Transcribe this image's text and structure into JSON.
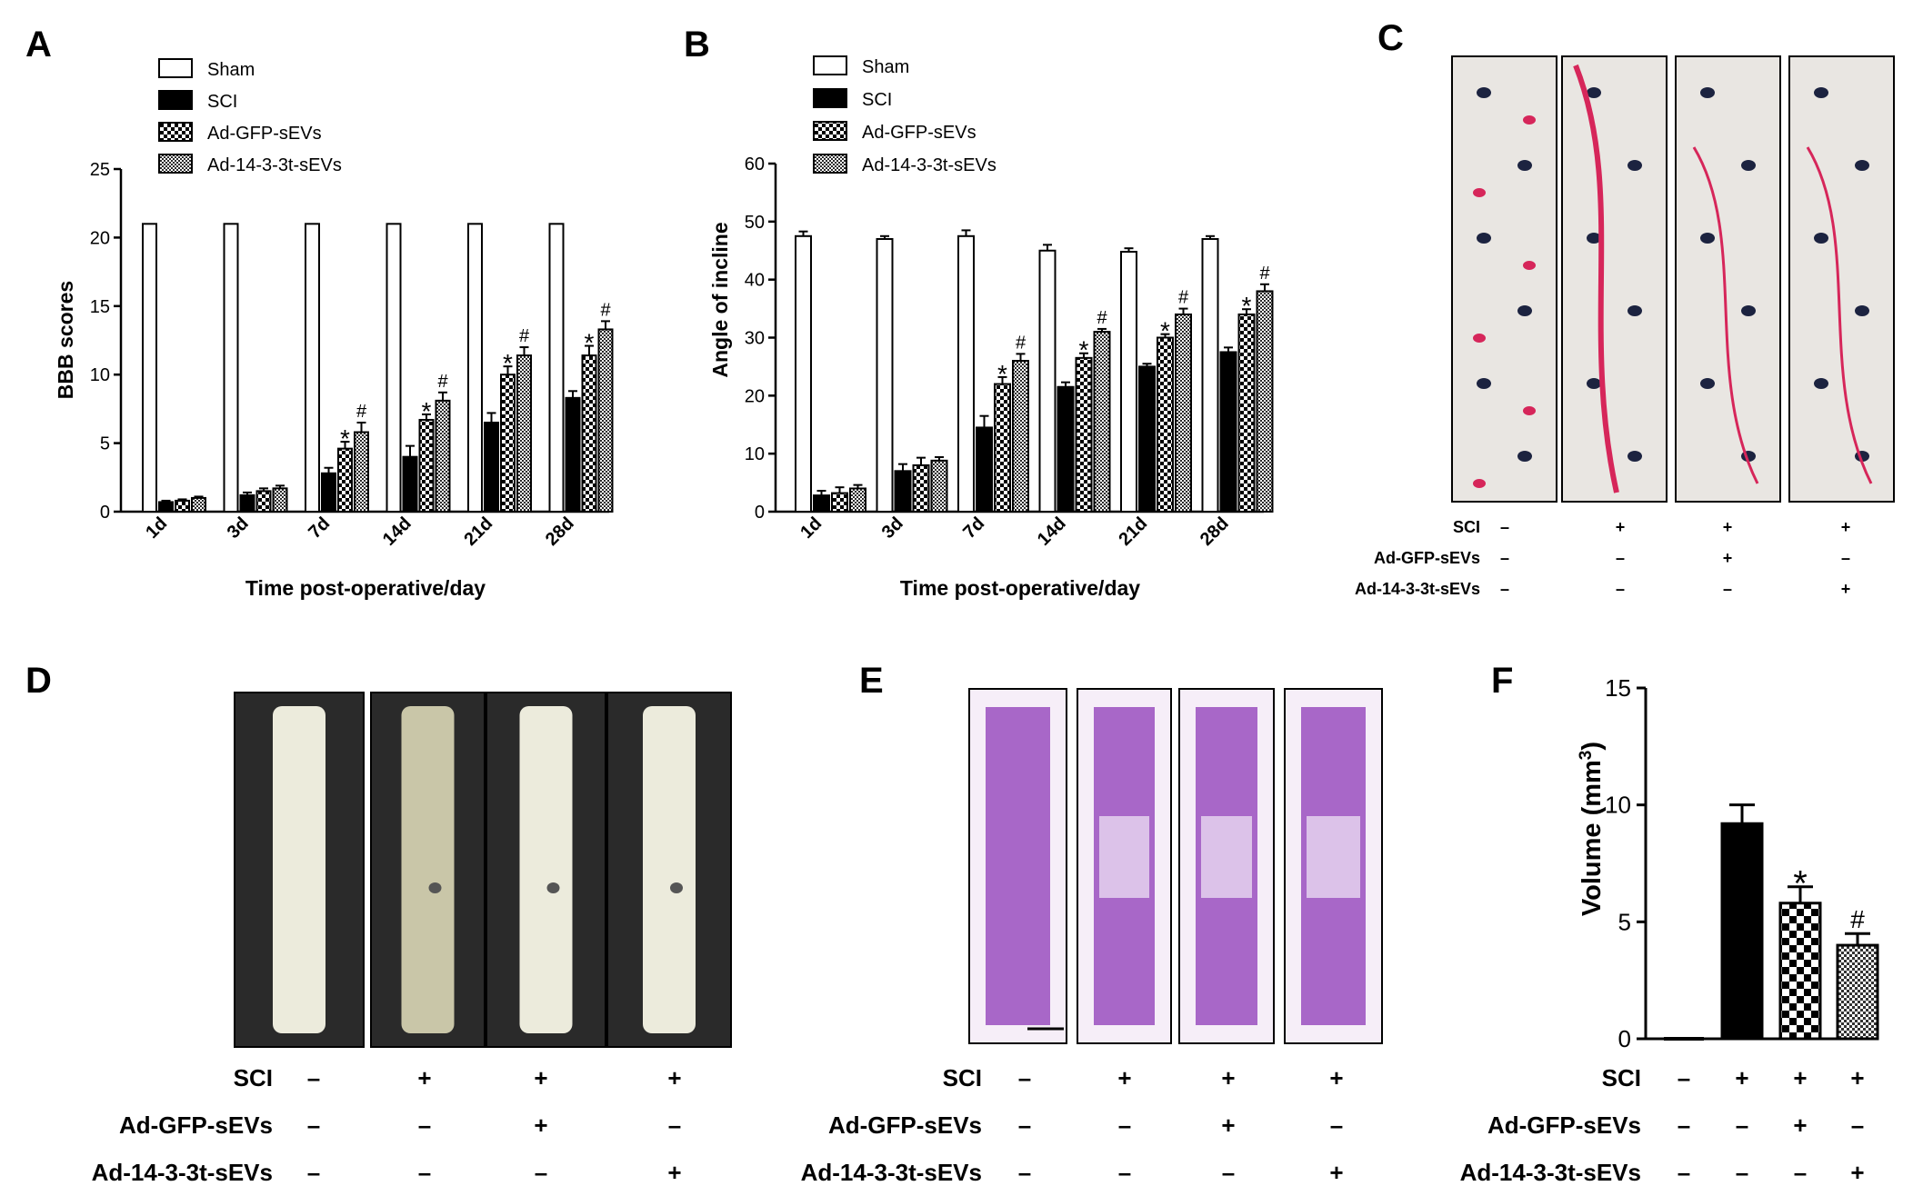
{
  "panels": {
    "A": "A",
    "B": "B",
    "C": "C",
    "D": "D",
    "E": "E",
    "F": "F"
  },
  "legend": [
    "Sham",
    "SCI",
    "Ad-GFP-sEVs",
    "Ad-14-3-3t-sEVs"
  ],
  "treatment_table": {
    "rows": [
      "SCI",
      "Ad-GFP-sEVs",
      "Ad-14-3-3t-sEVs"
    ],
    "signs": [
      [
        "–",
        "+",
        "+",
        "+"
      ],
      [
        "–",
        "–",
        "+",
        "–"
      ],
      [
        "–",
        "–",
        "–",
        "+"
      ]
    ]
  },
  "colors": {
    "footprint_photo_bg": "#e9e6e2",
    "forepaw_ink": "#1c2340",
    "hindpaw_ink": "#d6265a",
    "cord_photo_bg": "#2a2a2a",
    "cord_tissue": "#ecebdc",
    "he_stain": "#9a4fbf",
    "he_bg": "#f6eef8"
  },
  "chart_data": [
    {
      "panel": "A",
      "type": "bar",
      "categories": [
        "1d",
        "3d",
        "7d",
        "14d",
        "21d",
        "28d"
      ],
      "xlabel": "Time post-operative/day",
      "ylabel": "BBB scores",
      "ylim": [
        0,
        25
      ],
      "yticks": [
        "0",
        "5",
        "10",
        "15",
        "20",
        "25"
      ],
      "series": [
        {
          "name": "Sham",
          "pattern": "open",
          "values": [
            21,
            21,
            21,
            21,
            21,
            21
          ],
          "errors": [
            0,
            0,
            0,
            0,
            0,
            0
          ]
        },
        {
          "name": "SCI",
          "pattern": "solid",
          "values": [
            0.7,
            1.2,
            2.8,
            4.0,
            6.5,
            8.3
          ],
          "errors": [
            0.1,
            0.2,
            0.4,
            0.8,
            0.7,
            0.5
          ]
        },
        {
          "name": "Ad-GFP-sEVs",
          "pattern": "checker",
          "values": [
            0.8,
            1.5,
            4.6,
            6.7,
            10.0,
            11.4
          ],
          "errors": [
            0.1,
            0.2,
            0.5,
            0.4,
            0.6,
            0.7
          ]
        },
        {
          "name": "Ad-14-3-3t-sEVs",
          "pattern": "fine",
          "values": [
            1.0,
            1.7,
            5.8,
            8.1,
            11.4,
            13.3
          ],
          "errors": [
            0.1,
            0.2,
            0.7,
            0.6,
            0.6,
            0.6
          ]
        }
      ],
      "annotations": [
        {
          "category": "7d",
          "series": "Ad-GFP-sEVs",
          "text": "*"
        },
        {
          "category": "7d",
          "series": "Ad-14-3-3t-sEVs",
          "text": "#"
        },
        {
          "category": "14d",
          "series": "Ad-GFP-sEVs",
          "text": "*"
        },
        {
          "category": "14d",
          "series": "Ad-14-3-3t-sEVs",
          "text": "#"
        },
        {
          "category": "21d",
          "series": "Ad-GFP-sEVs",
          "text": "*"
        },
        {
          "category": "21d",
          "series": "Ad-14-3-3t-sEVs",
          "text": "#"
        },
        {
          "category": "28d",
          "series": "Ad-GFP-sEVs",
          "text": "*"
        },
        {
          "category": "28d",
          "series": "Ad-14-3-3t-sEVs",
          "text": "#"
        }
      ]
    },
    {
      "panel": "B",
      "type": "bar",
      "categories": [
        "1d",
        "3d",
        "7d",
        "14d",
        "21d",
        "28d"
      ],
      "xlabel": "Time post-operative/day",
      "ylabel": "Angle of incline",
      "ylim": [
        0,
        60
      ],
      "yticks": [
        "0",
        "10",
        "20",
        "30",
        "40",
        "50",
        "60"
      ],
      "series": [
        {
          "name": "Sham",
          "pattern": "open",
          "values": [
            47.5,
            47,
            47.5,
            45,
            44.8,
            47
          ],
          "errors": [
            0.8,
            0.5,
            1.0,
            1.0,
            0.6,
            0.5
          ]
        },
        {
          "name": "SCI",
          "pattern": "solid",
          "values": [
            2.8,
            7.0,
            14.5,
            21.5,
            25.0,
            27.5
          ],
          "errors": [
            0.8,
            1.2,
            2.0,
            0.8,
            0.5,
            0.8
          ]
        },
        {
          "name": "Ad-GFP-sEVs",
          "pattern": "checker",
          "values": [
            3.2,
            8.0,
            22.0,
            26.5,
            30.0,
            34.0
          ],
          "errors": [
            1.0,
            1.3,
            1.2,
            0.8,
            0.6,
            0.9
          ]
        },
        {
          "name": "Ad-14-3-3t-sEVs",
          "pattern": "fine",
          "values": [
            4.0,
            8.8,
            26.0,
            31.0,
            34.0,
            38.0
          ],
          "errors": [
            0.6,
            0.6,
            1.2,
            0.5,
            1.0,
            1.2
          ]
        }
      ],
      "annotations": [
        {
          "category": "7d",
          "series": "Ad-GFP-sEVs",
          "text": "*"
        },
        {
          "category": "7d",
          "series": "Ad-14-3-3t-sEVs",
          "text": "#"
        },
        {
          "category": "14d",
          "series": "Ad-GFP-sEVs",
          "text": "*"
        },
        {
          "category": "14d",
          "series": "Ad-14-3-3t-sEVs",
          "text": "#"
        },
        {
          "category": "21d",
          "series": "Ad-GFP-sEVs",
          "text": "*"
        },
        {
          "category": "21d",
          "series": "Ad-14-3-3t-sEVs",
          "text": "#"
        },
        {
          "category": "28d",
          "series": "Ad-GFP-sEVs",
          "text": "*"
        },
        {
          "category": "28d",
          "series": "Ad-14-3-3t-sEVs",
          "text": "#"
        }
      ]
    },
    {
      "panel": "F",
      "type": "bar",
      "ylabel": "Volume (mm",
      "ylabel_sup": "3",
      "ylabel_end": ")",
      "ylim": [
        0,
        15
      ],
      "yticks": [
        "0",
        "5",
        "10",
        "15"
      ],
      "bars": [
        {
          "group": "Sham",
          "pattern": "solid",
          "value": 0,
          "error": 0
        },
        {
          "group": "SCI",
          "pattern": "solid",
          "value": 9.2,
          "error": 0.8
        },
        {
          "group": "Ad-GFP-sEVs",
          "pattern": "checker",
          "value": 5.8,
          "error": 0.7
        },
        {
          "group": "Ad-14-3-3t-sEVs",
          "pattern": "fine",
          "value": 4.0,
          "error": 0.5
        }
      ],
      "annotations": [
        {
          "bar": 2,
          "text": "*"
        },
        {
          "bar": 3,
          "text": "#"
        }
      ]
    }
  ]
}
